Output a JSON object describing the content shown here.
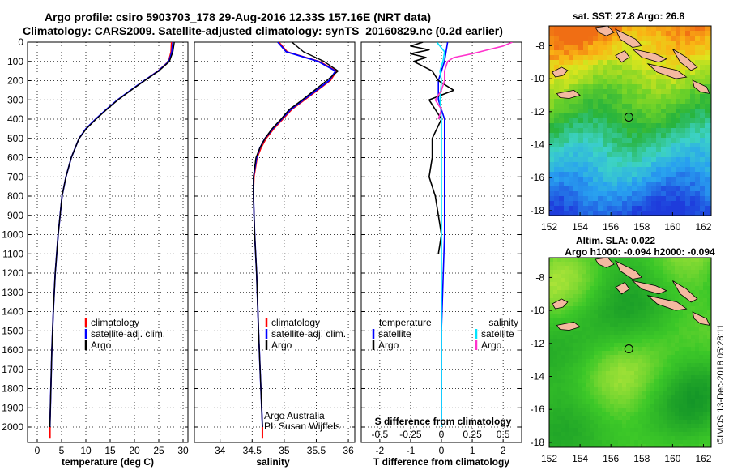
{
  "title": {
    "line1": "Argo profile: csiro 5903703_178 29-Aug-2016 12.33S 157.16E (NRT data)",
    "line2": "Climatology: CARS2009. Satellite-adjusted climatology: synTS_20160829.nc (0.2d earlier)"
  },
  "credits": {
    "org": "Argo Australia",
    "pi": "PI: Susan Wijffels",
    "stamp": "©IMOS 13-Dec-2018 05:28:11"
  },
  "colors": {
    "climatology": "#ff0000",
    "satellite": "#0000ff",
    "argo": "#000000",
    "sal_satellite": "#00e5ff",
    "sal_argo": "#ff33cc",
    "land": "#f4b9a0"
  },
  "chart_data": [
    {
      "type": "line",
      "panel": "temperature",
      "xlabel": "temperature (deg C)",
      "ylabel": "",
      "xlim": [
        -2,
        31
      ],
      "ylim": [
        2080,
        0
      ],
      "xticks": [
        0,
        5,
        10,
        15,
        20,
        25,
        30
      ],
      "yticks": [
        0,
        100,
        200,
        300,
        400,
        500,
        600,
        700,
        800,
        900,
        1000,
        1100,
        1200,
        1300,
        1400,
        1500,
        1600,
        1700,
        1800,
        1900,
        2000
      ],
      "legend": [
        "climatology",
        "satellite-adj. clim.",
        "Argo"
      ],
      "depth": [
        0,
        50,
        100,
        150,
        200,
        250,
        300,
        350,
        400,
        450,
        500,
        600,
        700,
        800,
        1000,
        1200,
        1400,
        1600,
        1800,
        2000
      ],
      "series": [
        {
          "name": "climatology",
          "values": [
            27.6,
            27.5,
            27.0,
            24.8,
            22.0,
            19.2,
            16.5,
            14.2,
            12.0,
            10.0,
            8.6,
            7.0,
            5.9,
            5.1,
            4.3,
            3.7,
            3.3,
            3.0,
            2.8,
            2.6
          ]
        },
        {
          "name": "satellite-adj. clim.",
          "values": [
            27.9,
            27.7,
            27.1,
            24.9,
            22.0,
            19.2,
            16.5,
            14.2,
            12.0,
            10.0,
            8.6,
            7.0,
            5.9,
            5.1,
            4.3,
            3.7,
            3.3,
            3.0,
            2.8,
            2.6
          ]
        },
        {
          "name": "Argo",
          "values": [
            28.2,
            27.9,
            27.2,
            25.0,
            22.1,
            19.3,
            16.6,
            14.3,
            12.1,
            10.1,
            8.6,
            7.0,
            5.9,
            5.1,
            4.3,
            3.7,
            3.3,
            3.0,
            2.8,
            2.6
          ]
        }
      ]
    },
    {
      "type": "line",
      "panel": "salinity",
      "xlabel": "salinity",
      "xlim": [
        33.6,
        36.1
      ],
      "ylim": [
        2080,
        0
      ],
      "xticks": [
        34,
        34.5,
        35,
        35.5,
        36
      ],
      "legend": [
        "climatology",
        "satellite-adj. clim.",
        "Argo"
      ],
      "depth": [
        0,
        50,
        100,
        150,
        200,
        250,
        300,
        350,
        400,
        450,
        500,
        550,
        600,
        700,
        800,
        1000,
        1200,
        1500,
        2000
      ],
      "series": [
        {
          "name": "climatology",
          "values": [
            34.92,
            35.05,
            35.55,
            35.82,
            35.72,
            35.52,
            35.32,
            35.12,
            34.98,
            34.84,
            34.72,
            34.64,
            34.58,
            34.53,
            34.52,
            34.54,
            34.57,
            34.6,
            34.66
          ]
        },
        {
          "name": "satellite-adj. clim.",
          "values": [
            34.9,
            35.03,
            35.53,
            35.8,
            35.7,
            35.5,
            35.3,
            35.1,
            34.96,
            34.82,
            34.7,
            34.62,
            34.57,
            34.52,
            34.52,
            34.54,
            34.57,
            34.6,
            34.66
          ]
        },
        {
          "name": "Argo",
          "values": [
            35.12,
            35.3,
            35.62,
            35.84,
            35.66,
            35.47,
            35.28,
            35.08,
            34.95,
            34.81,
            34.7,
            34.62,
            34.56,
            34.52,
            34.52,
            34.54,
            34.57,
            34.6,
            34.66
          ]
        }
      ]
    },
    {
      "type": "line",
      "panel": "differences",
      "xlabel": "T difference from climatology",
      "xlabel2": "S difference from climatology",
      "xlim": [
        -2.6,
        2.6
      ],
      "ylim": [
        2080,
        0
      ],
      "xticks": [
        -2,
        -1,
        0,
        1,
        2
      ],
      "xticks_salinity": [
        -0.5,
        -0.25,
        0,
        0.25,
        0.5
      ],
      "legend_temperature": {
        "header": "temperature",
        "items": [
          "satellite",
          "Argo"
        ]
      },
      "legend_salinity": {
        "header": "salinity",
        "items": [
          "satellite",
          "Argo"
        ]
      },
      "series": [
        {
          "name": "temperature satellite",
          "depth": [
            0,
            100,
            200,
            300,
            400,
            500,
            700,
            1000,
            1500,
            2000
          ],
          "values": [
            0.2,
            0.1,
            -0.1,
            -0.1,
            0.1,
            0.1,
            0.1,
            0.1,
            0.0,
            0.0
          ]
        },
        {
          "name": "temperature Argo",
          "depth": [
            0,
            20,
            40,
            60,
            80,
            100,
            150,
            200,
            250,
            300,
            400,
            500,
            600,
            700,
            800,
            900,
            1000,
            1100
          ],
          "values": [
            -0.6,
            -1.0,
            -0.4,
            -1.0,
            -0.5,
            -0.9,
            -0.3,
            -0.1,
            0.4,
            -0.4,
            0.0,
            -0.3,
            -0.3,
            -0.4,
            -0.2,
            -0.1,
            0.0,
            -0.1
          ]
        },
        {
          "name": "salinity satellite",
          "depth": [
            0,
            50,
            100,
            150,
            200,
            300,
            400,
            500,
            1000,
            2000
          ],
          "values": [
            -0.15,
            0.1,
            0.05,
            -0.05,
            0.0,
            -0.05,
            0.0,
            0.0,
            0.0,
            0.0
          ]
        },
        {
          "name": "salinity Argo",
          "depth": [
            0,
            20,
            40,
            60,
            80,
            100,
            150,
            200,
            250,
            300,
            350,
            400
          ],
          "values": [
            2.3,
            2.0,
            1.5,
            1.0,
            0.4,
            0.2,
            0.1,
            0.1,
            0.0,
            -0.2,
            0.0,
            -0.1
          ]
        }
      ]
    },
    {
      "type": "heatmap",
      "panel": "sst-map",
      "title": "sat. SST: 27.8 Argo: 26.8",
      "xlim": [
        152,
        162.5
      ],
      "ylim": [
        -18.3,
        -6.8
      ],
      "xticks": [
        152,
        154,
        156,
        158,
        160,
        162
      ],
      "yticks": [
        -8,
        -10,
        -12,
        -14,
        -16,
        -18
      ],
      "profile_location": [
        157.16,
        -12.33
      ]
    },
    {
      "type": "heatmap",
      "panel": "sla-map",
      "title_line1": "Altim. SLA: 0.022",
      "title_line2": "Argo h1000: -0.094 h2000: -0.094",
      "xlim": [
        152,
        162.5
      ],
      "ylim": [
        -18.3,
        -6.8
      ],
      "xticks": [
        152,
        154,
        156,
        158,
        160,
        162
      ],
      "yticks": [
        -8,
        -10,
        -12,
        -14,
        -16,
        -18
      ],
      "profile_location": [
        157.16,
        -12.33
      ]
    }
  ]
}
